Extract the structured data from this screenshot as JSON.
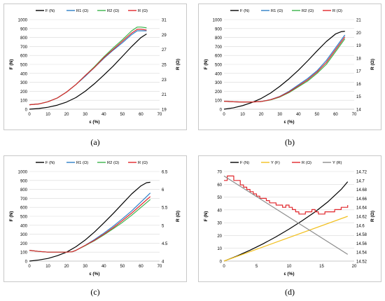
{
  "captions": [
    "(a)",
    "(b)",
    "(c)",
    "(d)"
  ],
  "chart_data": [
    {
      "type": "line",
      "legend_position": "top",
      "x_axis": {
        "label": "ε (%)",
        "range": [
          0,
          70
        ],
        "ticks": [
          0,
          10,
          20,
          30,
          40,
          50,
          60,
          70
        ],
        "tick_labels": [
          "0",
          "10",
          "20",
          "30",
          "40",
          "50",
          "60",
          "70"
        ]
      },
      "y_axis_left": {
        "label": "F (N)",
        "range": [
          0,
          1000
        ],
        "ticks": [
          0,
          100,
          200,
          300,
          400,
          500,
          600,
          700,
          800,
          900,
          1000
        ],
        "tick_labels": [
          "0",
          "100",
          "200",
          "300",
          "400",
          "500",
          "600",
          "700",
          "800",
          "900",
          "1000"
        ]
      },
      "y_axis_right": {
        "label": "R (Ω)",
        "range": [
          19,
          31
        ],
        "ticks": [
          19,
          21,
          23,
          25,
          27,
          29,
          31
        ],
        "tick_labels": [
          "19",
          "21",
          "23",
          "25",
          "27",
          "29",
          "31"
        ]
      },
      "series": [
        {
          "name": "F (N)",
          "color": "#000000",
          "axis": "left",
          "x": [
            0,
            5,
            10,
            15,
            20,
            25,
            30,
            35,
            40,
            45,
            50,
            55,
            60,
            63
          ],
          "y": [
            0,
            8,
            22,
            45,
            80,
            130,
            200,
            285,
            380,
            480,
            590,
            700,
            800,
            840
          ]
        },
        {
          "name": "R1 (Ω)",
          "color": "#2e7fc7",
          "axis": "right",
          "x": [
            0,
            5,
            10,
            15,
            20,
            25,
            30,
            35,
            40,
            45,
            50,
            55,
            58,
            60,
            63
          ],
          "y": [
            19.6,
            19.7,
            20.0,
            20.5,
            21.3,
            22.3,
            23.4,
            24.6,
            25.8,
            26.9,
            27.9,
            29.0,
            29.5,
            29.5,
            29.5
          ]
        },
        {
          "name": "R2 (Ω)",
          "color": "#3cb44b",
          "axis": "right",
          "x": [
            0,
            5,
            10,
            15,
            20,
            25,
            30,
            35,
            40,
            45,
            50,
            55,
            58,
            60,
            63
          ],
          "y": [
            19.6,
            19.7,
            20.0,
            20.5,
            21.3,
            22.3,
            23.5,
            24.7,
            26.0,
            27.2,
            28.3,
            29.5,
            30.0,
            30.0,
            29.9
          ]
        },
        {
          "name": "R (Ω)",
          "color": "#e0262b",
          "axis": "right",
          "x": [
            0,
            5,
            10,
            15,
            20,
            25,
            30,
            35,
            40,
            45,
            50,
            55,
            58,
            60,
            63
          ],
          "y": [
            19.6,
            19.7,
            20.0,
            20.5,
            21.3,
            22.3,
            23.5,
            24.6,
            25.9,
            27.0,
            28.1,
            29.2,
            29.7,
            29.7,
            29.6
          ]
        }
      ]
    },
    {
      "type": "line",
      "legend_position": "top",
      "x_axis": {
        "label": "ε (%)",
        "range": [
          0,
          70
        ],
        "ticks": [
          0,
          10,
          20,
          30,
          40,
          50,
          60,
          70
        ],
        "tick_labels": [
          "0",
          "10",
          "20",
          "30",
          "40",
          "50",
          "60",
          "70"
        ]
      },
      "y_axis_left": {
        "label": "F (N)",
        "range": [
          0,
          1000
        ],
        "ticks": [
          0,
          100,
          200,
          300,
          400,
          500,
          600,
          700,
          800,
          900,
          1000
        ],
        "tick_labels": [
          "0",
          "100",
          "200",
          "300",
          "400",
          "500",
          "600",
          "700",
          "800",
          "900",
          "1000"
        ]
      },
      "y_axis_right": {
        "label": "R (Ω)",
        "range": [
          14,
          21
        ],
        "ticks": [
          14,
          15,
          16,
          17,
          18,
          19,
          20,
          21
        ],
        "tick_labels": [
          "14",
          "15",
          "16",
          "17",
          "18",
          "19",
          "20",
          "21"
        ]
      },
      "series": [
        {
          "name": "F (N)",
          "color": "#000000",
          "axis": "left",
          "x": [
            0,
            5,
            10,
            15,
            20,
            25,
            30,
            35,
            40,
            45,
            50,
            55,
            60,
            63,
            65
          ],
          "y": [
            0,
            15,
            40,
            75,
            120,
            180,
            255,
            340,
            435,
            540,
            650,
            755,
            840,
            865,
            870
          ]
        },
        {
          "name": "R1 (Ω)",
          "color": "#2e7fc7",
          "axis": "right",
          "x": [
            0,
            5,
            10,
            15,
            20,
            25,
            30,
            35,
            40,
            45,
            50,
            55,
            60,
            63,
            65
          ],
          "y": [
            14.62,
            14.58,
            14.56,
            14.56,
            14.6,
            14.75,
            15.0,
            15.4,
            15.9,
            16.4,
            17.0,
            17.8,
            18.8,
            19.4,
            19.8
          ]
        },
        {
          "name": "R2 (Ω)",
          "color": "#3cb44b",
          "axis": "right",
          "x": [
            0,
            5,
            10,
            15,
            20,
            25,
            30,
            35,
            40,
            45,
            50,
            55,
            60,
            63,
            65
          ],
          "y": [
            14.62,
            14.58,
            14.56,
            14.56,
            14.6,
            14.72,
            14.95,
            15.3,
            15.75,
            16.2,
            16.8,
            17.5,
            18.5,
            19.1,
            19.5
          ]
        },
        {
          "name": "R (Ω)",
          "color": "#e0262b",
          "axis": "right",
          "x": [
            0,
            5,
            10,
            15,
            20,
            25,
            30,
            35,
            40,
            45,
            50,
            55,
            60,
            63,
            65
          ],
          "y": [
            14.62,
            14.58,
            14.56,
            14.56,
            14.6,
            14.74,
            14.98,
            15.35,
            15.82,
            16.3,
            16.9,
            17.65,
            18.65,
            19.25,
            19.65
          ]
        }
      ]
    },
    {
      "type": "line",
      "legend_position": "top",
      "x_axis": {
        "label": "ε (%)",
        "range": [
          0,
          70
        ],
        "ticks": [
          0,
          10,
          20,
          30,
          40,
          50,
          60,
          70
        ],
        "tick_labels": [
          "0",
          "10",
          "20",
          "30",
          "40",
          "50",
          "60",
          "70"
        ]
      },
      "y_axis_left": {
        "label": "F (N)",
        "range": [
          0,
          1000
        ],
        "ticks": [
          0,
          100,
          200,
          300,
          400,
          500,
          600,
          700,
          800,
          900,
          1000
        ],
        "tick_labels": [
          "0",
          "100",
          "200",
          "300",
          "400",
          "500",
          "600",
          "700",
          "800",
          "900",
          "1000"
        ]
      },
      "y_axis_right": {
        "label": "R (Ω)",
        "range": [
          4,
          6.5
        ],
        "ticks": [
          4,
          4.5,
          5,
          5.5,
          6,
          6.5
        ],
        "tick_labels": [
          "4",
          "4.5",
          "5",
          "5.5",
          "6",
          "6.5"
        ]
      },
      "series": [
        {
          "name": "F (N)",
          "color": "#000000",
          "axis": "left",
          "x": [
            0,
            5,
            10,
            15,
            20,
            25,
            30,
            35,
            40,
            45,
            50,
            55,
            60,
            63,
            65
          ],
          "y": [
            0,
            12,
            30,
            60,
            100,
            160,
            235,
            325,
            425,
            530,
            640,
            750,
            840,
            875,
            880
          ]
        },
        {
          "name": "R1 (Ω)",
          "color": "#2e7fc7",
          "axis": "right",
          "x": [
            0,
            5,
            10,
            15,
            20,
            23,
            25,
            30,
            35,
            40,
            45,
            50,
            55,
            60,
            65
          ],
          "y": [
            4.3,
            4.27,
            4.25,
            4.25,
            4.25,
            4.26,
            4.3,
            4.44,
            4.6,
            4.78,
            4.97,
            5.18,
            5.4,
            5.65,
            5.9
          ]
        },
        {
          "name": "R2 (Ω)",
          "color": "#3cb44b",
          "axis": "right",
          "x": [
            0,
            5,
            10,
            15,
            20,
            23,
            25,
            30,
            35,
            40,
            45,
            50,
            55,
            60,
            65
          ],
          "y": [
            4.3,
            4.27,
            4.25,
            4.25,
            4.25,
            4.26,
            4.3,
            4.43,
            4.57,
            4.73,
            4.9,
            5.08,
            5.28,
            5.5,
            5.72
          ]
        },
        {
          "name": "R (Ω)",
          "color": "#e0262b",
          "axis": "right",
          "x": [
            0,
            5,
            10,
            15,
            20,
            23,
            25,
            30,
            35,
            40,
            45,
            50,
            55,
            60,
            65
          ],
          "y": [
            4.3,
            4.27,
            4.25,
            4.25,
            4.25,
            4.26,
            4.3,
            4.44,
            4.58,
            4.75,
            4.93,
            5.13,
            5.34,
            5.57,
            5.8
          ]
        }
      ]
    },
    {
      "type": "line",
      "legend_position": "top",
      "x_axis": {
        "label": "ε (%)",
        "range": [
          0,
          20
        ],
        "ticks": [
          0,
          5,
          10,
          15,
          20
        ],
        "tick_labels": [
          "0",
          "5",
          "10",
          "15",
          "20"
        ]
      },
      "y_axis_left": {
        "label": "F (N)",
        "range": [
          0,
          70
        ],
        "ticks": [
          0,
          10,
          20,
          30,
          40,
          50,
          60,
          70
        ],
        "tick_labels": [
          "0",
          "10",
          "20",
          "30",
          "40",
          "50",
          "60",
          "70"
        ]
      },
      "y_axis_right": {
        "label": "R (Ω)",
        "range": [
          14.52,
          14.72
        ],
        "ticks": [
          14.52,
          14.54,
          14.56,
          14.58,
          14.6,
          14.62,
          14.64,
          14.66,
          14.68,
          14.7,
          14.72
        ],
        "tick_labels": [
          "14.52",
          "14.54",
          "14.56",
          "14.58",
          "14.6",
          "14.62",
          "14.64",
          "14.66",
          "14.68",
          "14.7",
          "14.72"
        ]
      },
      "series": [
        {
          "name": "F (N)",
          "color": "#000000",
          "axis": "left",
          "x": [
            0,
            2,
            4,
            6,
            8,
            10,
            12,
            14,
            16,
            18,
            19
          ],
          "y": [
            0,
            4,
            8.5,
            13.5,
            19,
            25,
            31.5,
            38.5,
            46.5,
            56,
            62
          ]
        },
        {
          "name": "Y (F)",
          "color": "#f2c01f",
          "axis": "left",
          "x": [
            0,
            19
          ],
          "y": [
            0,
            35
          ]
        },
        {
          "name": "R (Ω)",
          "color": "#e0262b",
          "axis": "right",
          "step": true,
          "x": [
            0,
            0.5,
            1,
            1.5,
            2,
            2.5,
            3,
            3.5,
            4,
            4.5,
            5,
            5.5,
            6,
            6.5,
            7,
            7.5,
            8,
            8.5,
            9,
            9.5,
            10,
            10.5,
            11,
            11.5,
            12,
            12.5,
            13,
            13.5,
            14,
            14.5,
            15,
            15.5,
            16,
            16.5,
            17,
            17.5,
            18,
            18.5,
            19
          ],
          "y": [
            14.7,
            14.71,
            14.71,
            14.7,
            14.7,
            14.69,
            14.685,
            14.68,
            14.675,
            14.67,
            14.665,
            14.66,
            14.66,
            14.655,
            14.65,
            14.65,
            14.645,
            14.645,
            14.64,
            14.645,
            14.64,
            14.635,
            14.63,
            14.625,
            14.625,
            14.63,
            14.63,
            14.635,
            14.63,
            14.625,
            14.625,
            14.63,
            14.63,
            14.63,
            14.635,
            14.635,
            14.64,
            14.64,
            14.645
          ]
        },
        {
          "name": "Y (R)",
          "color": "#8c8c8c",
          "axis": "right",
          "x": [
            0,
            19
          ],
          "y": [
            14.71,
            14.535
          ]
        }
      ]
    }
  ]
}
